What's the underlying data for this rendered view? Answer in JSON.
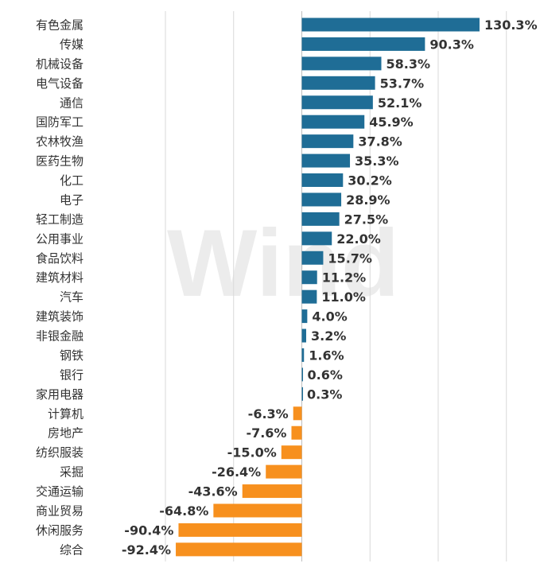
{
  "chart_data": {
    "type": "bar",
    "orientation": "horizontal",
    "categories": [
      "有色金属",
      "传媒",
      "机械设备",
      "电气设备",
      "通信",
      "国防军工",
      "农林牧渔",
      "医药生物",
      "化工",
      "电子",
      "轻工制造",
      "公用事业",
      "食品饮料",
      "建筑材料",
      "汽车",
      "建筑装饰",
      "非银金融",
      "钢铁",
      "银行",
      "家用电器",
      "计算机",
      "房地产",
      "纺织服装",
      "采掘",
      "交通运输",
      "商业贸易",
      "休闲服务",
      "综合"
    ],
    "values": [
      130.3,
      90.3,
      58.3,
      53.7,
      52.1,
      45.9,
      37.8,
      35.3,
      30.2,
      28.9,
      27.5,
      22.0,
      15.7,
      11.2,
      11.0,
      4.0,
      3.2,
      1.6,
      0.6,
      0.3,
      -6.3,
      -7.6,
      -15.0,
      -26.4,
      -43.6,
      -64.8,
      -90.4,
      -92.4
    ],
    "value_labels": [
      "130.3%",
      "90.3%",
      "58.3%",
      "53.7%",
      "52.1%",
      "45.9%",
      "37.8%",
      "35.3%",
      "30.2%",
      "28.9%",
      "27.5%",
      "22.0%",
      "15.7%",
      "11.2%",
      "11.0%",
      "4.0%",
      "3.2%",
      "1.6%",
      "0.6%",
      "0.3%",
      "-6.3%",
      "-7.6%",
      "-15.0%",
      "-26.4%",
      "-43.6%",
      "-64.8%",
      "-90.4%",
      "-92.4%"
    ],
    "xlim": [
      -100,
      150
    ],
    "grid": true,
    "legend": "none",
    "colors": {
      "positive": "#1f6d96",
      "negative": "#f7901e",
      "grid": "#d9d9d9"
    },
    "watermark": "Wind"
  }
}
